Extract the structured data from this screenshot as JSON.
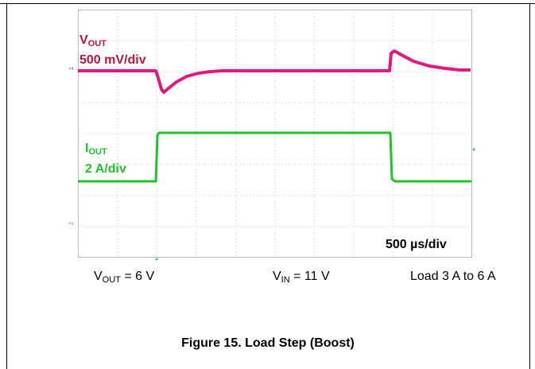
{
  "scope": {
    "vout_label": {
      "symbol": "V",
      "subscript": "OUT"
    },
    "vout_scale": "500 mV/div",
    "iout_label": {
      "symbol": "I",
      "subscript": "OUT"
    },
    "iout_scale": "2 A/div",
    "time_scale": "500 µs/div"
  },
  "conditions": [
    {
      "symbol": "V",
      "subscript": "OUT",
      "rest": " = 6 V"
    },
    {
      "symbol": "V",
      "subscript": "IN",
      "rest": " = 11 V"
    },
    {
      "text": "Load 3 A to 6 A"
    }
  ],
  "caption": "Figure 15. Load Step (Boost)"
}
